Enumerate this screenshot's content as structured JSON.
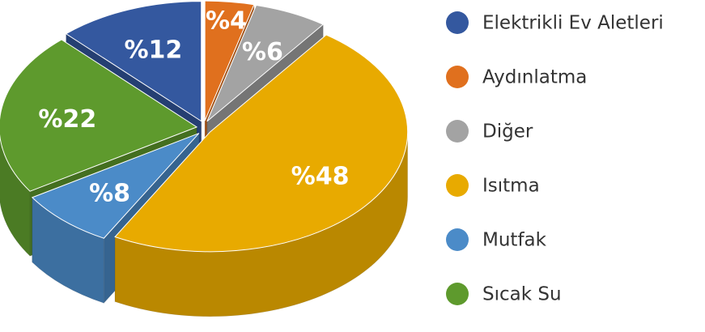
{
  "chart_data": {
    "type": "pie",
    "categories": [
      "Elektrikli Ev Aletleri",
      "Aydınlatma",
      "Diğer",
      "Isıtma",
      "Mutfak",
      "Sıcak Su"
    ],
    "values": [
      12,
      4,
      6,
      48,
      8,
      22
    ],
    "value_labels": [
      "%12",
      "%4",
      "%6",
      "%48",
      "%8",
      "%22"
    ],
    "colors": [
      "#34589f",
      "#e0701e",
      "#a3a3a3",
      "#e8aa00",
      "#4b8bc8",
      "#5e9a2d"
    ],
    "legend": "right"
  }
}
